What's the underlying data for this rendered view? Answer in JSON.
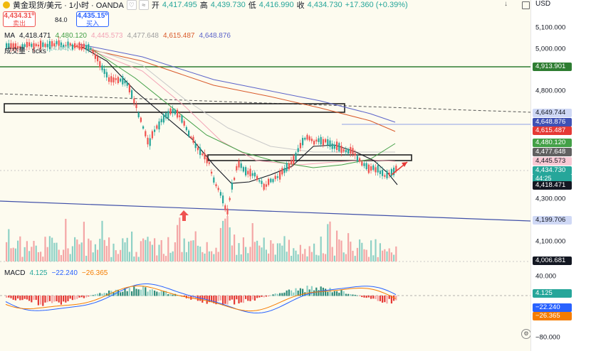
{
  "header": {
    "symbol": "黄金现货/美元 · 1小时 · OANDA",
    "open_label": "开",
    "open": "4,417.495",
    "high_label": "高",
    "high": "4,439.730",
    "low_label": "低",
    "low": "4,416.990",
    "close_label": "收",
    "close": "4,434.730",
    "change": "+17.360 (+0.39%)"
  },
  "trade": {
    "sell_price": "4,434.31⁰",
    "sell_label": "卖出",
    "spread": "84.0",
    "buy_price": "4,435.15⁰",
    "buy_label": "买入"
  },
  "ma_legend": {
    "label": "MA",
    "values": [
      "4,418.471",
      "4,480.120",
      "4,445.573",
      "4,477.648",
      "4,615.487",
      "4,648.876"
    ],
    "colors": [
      "#131722",
      "#43a047",
      "#f3a3b5",
      "#9e9e9e",
      "#d95a2b",
      "#5b63c9"
    ]
  },
  "volume_legend": {
    "label": "成交量 · ticks",
    "value": "14.04K"
  },
  "macd_legend": {
    "label": "MACD",
    "values": [
      "4.125",
      "−22.240",
      "−26.365"
    ],
    "colors": [
      "#26a69a",
      "#2962ff",
      "#f57c00"
    ]
  },
  "price_axis": {
    "currency": "USD",
    "ticks": [
      "5,100.000",
      "5,000.000",
      "4,800.000",
      "4,300.000",
      "4,100.000"
    ],
    "macd_ticks": [
      "40.000",
      "−80.000"
    ]
  },
  "price_tags": [
    {
      "text": "4,913.901",
      "bg": "#2e7d32",
      "fg": "#ffffff"
    },
    {
      "text": "4,649.744",
      "bg": "#cfd8f5",
      "fg": "#131722"
    },
    {
      "text": "4,648.876",
      "bg": "#3f51b5",
      "fg": "#ffffff"
    },
    {
      "text": "4,615.487",
      "bg": "#e53935",
      "fg": "#ffffff"
    },
    {
      "text": "4,480.120",
      "bg": "#43a047",
      "fg": "#ffffff"
    },
    {
      "text": "4,477.648",
      "bg": "#616161",
      "fg": "#ffffff"
    },
    {
      "text": "4,445.573",
      "bg": "#f8c9d4",
      "fg": "#131722"
    },
    {
      "text": "4,434.730",
      "bg": "#26a69a",
      "fg": "#ffffff"
    },
    {
      "text": "4,418.471",
      "bg": "#131722",
      "fg": "#ffffff"
    },
    {
      "text": "4,199.706",
      "bg": "#cfd8f5",
      "fg": "#131722"
    },
    {
      "text": "4,006.681",
      "bg": "#131722",
      "fg": "#ffffff"
    }
  ],
  "countdown": "44:25",
  "macd_tags": [
    {
      "text": "4.125",
      "bg": "#26a69a",
      "fg": "#ffffff"
    },
    {
      "text": "−22.240",
      "bg": "#2962ff",
      "fg": "#ffffff"
    },
    {
      "text": "−26.365",
      "bg": "#f57c00",
      "fg": "#ffffff"
    }
  ],
  "colors": {
    "up": "#26a69a",
    "down": "#ef5350",
    "chart_bg": "#fdfbef"
  }
}
